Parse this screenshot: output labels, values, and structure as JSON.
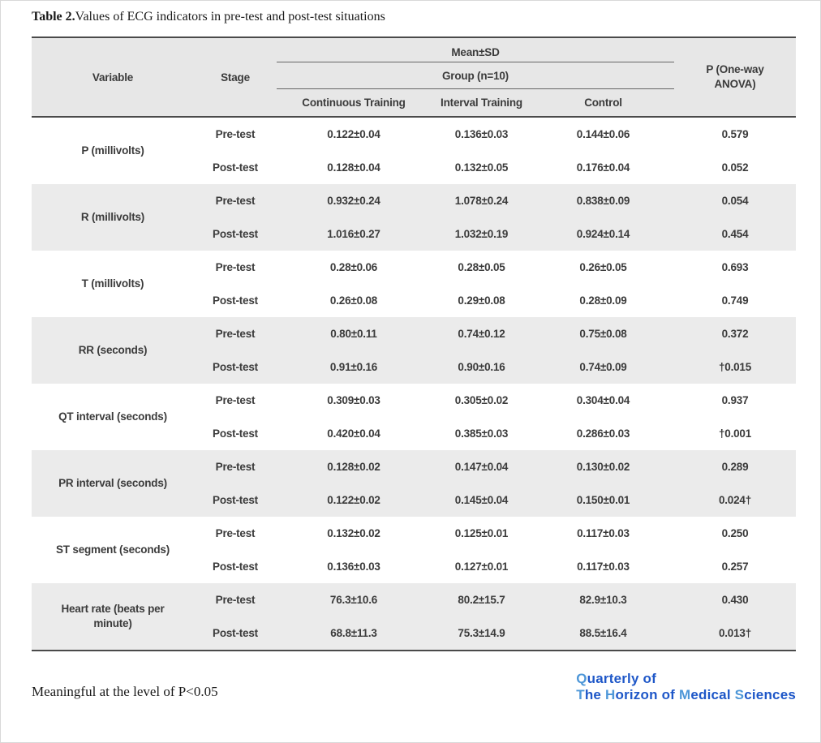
{
  "caption": {
    "label": "Table 2.",
    "text": "Values of ECG indicators in pre-test and post-test situations"
  },
  "colors": {
    "header_bg": "#e7e7e7",
    "stripe_bg": "#ebebeb",
    "rule_dark": "#4a4a4a",
    "rule_thin": "#666666",
    "text": "#3b3b3b",
    "logo_light": "#4e97d8",
    "logo_dark": "#1e57c8"
  },
  "table": {
    "header": {
      "variable": "Variable",
      "stage": "Stage",
      "mean_sd": "Mean±SD",
      "group": "Group (n=10)",
      "columns": [
        "Continuous Training",
        "Interval Training",
        "Control"
      ],
      "p_label": "P (One-way ANOVA)"
    },
    "blocks": [
      {
        "variable": "P (millivolts)",
        "rows": [
          {
            "stage": "Pre-test",
            "values": [
              "0.122±0.04",
              "0.136±0.03",
              "0.144±0.06"
            ],
            "p": "0.579"
          },
          {
            "stage": "Post-test",
            "values": [
              "0.128±0.04",
              "0.132±0.05",
              "0.176±0.04"
            ],
            "p": "0.052"
          }
        ]
      },
      {
        "variable": "R (millivolts)",
        "rows": [
          {
            "stage": "Pre-test",
            "values": [
              "0.932±0.24",
              "1.078±0.24",
              "0.838±0.09"
            ],
            "p": "0.054"
          },
          {
            "stage": "Post-test",
            "values": [
              "1.016±0.27",
              "1.032±0.19",
              "0.924±0.14"
            ],
            "p": "0.454"
          }
        ]
      },
      {
        "variable": "T (millivolts)",
        "rows": [
          {
            "stage": "Pre-test",
            "values": [
              "0.28±0.06",
              "0.28±0.05",
              "0.26±0.05"
            ],
            "p": "0.693"
          },
          {
            "stage": "Post-test",
            "values": [
              "0.26±0.08",
              "0.29±0.08",
              "0.28±0.09"
            ],
            "p": "0.749"
          }
        ]
      },
      {
        "variable": "RR (seconds)",
        "rows": [
          {
            "stage": "Pre-test",
            "values": [
              "0.80±0.11",
              "0.74±0.12",
              "0.75±0.08"
            ],
            "p": "0.372"
          },
          {
            "stage": "Post-test",
            "values": [
              "0.91±0.16",
              "0.90±0.16",
              "0.74±0.09"
            ],
            "p": "†0.015"
          }
        ]
      },
      {
        "variable": "QT interval (seconds)",
        "rows": [
          {
            "stage": "Pre-test",
            "values": [
              "0.309±0.03",
              "0.305±0.02",
              "0.304±0.04"
            ],
            "p": "0.937"
          },
          {
            "stage": "Post-test",
            "values": [
              "0.420±0.04",
              "0.385±0.03",
              "0.286±0.03"
            ],
            "p": "†0.001"
          }
        ]
      },
      {
        "variable": "PR interval (seconds)",
        "rows": [
          {
            "stage": "Pre-test",
            "values": [
              "0.128±0.02",
              "0.147±0.04",
              "0.130±0.02"
            ],
            "p": "0.289"
          },
          {
            "stage": "Post-test",
            "values": [
              "0.122±0.02",
              "0.145±0.04",
              "0.150±0.01"
            ],
            "p": "0.024†"
          }
        ]
      },
      {
        "variable": "ST segment (seconds)",
        "rows": [
          {
            "stage": "Pre-test",
            "values": [
              "0.132±0.02",
              "0.125±0.01",
              "0.117±0.03"
            ],
            "p": "0.250"
          },
          {
            "stage": "Post-test",
            "values": [
              "0.136±0.03",
              "0.127±0.01",
              "0.117±0.03"
            ],
            "p": "0.257"
          }
        ]
      },
      {
        "variable": "Heart rate (beats per minute)",
        "rows": [
          {
            "stage": "Pre-test",
            "values": [
              "76.3±10.6",
              "80.2±15.7",
              "82.9±10.3"
            ],
            "p": "0.430"
          },
          {
            "stage": "Post-test",
            "values": [
              "68.8±11.3",
              "75.3±14.9",
              "88.5±16.4"
            ],
            "p": "0.013†"
          }
        ]
      }
    ]
  },
  "footnote": "Meaningful at the level of P<0.05",
  "logo": {
    "line1": [
      {
        "t": "Q",
        "c": "light"
      },
      {
        "t": "uarterly of",
        "c": "dark"
      }
    ],
    "line2": [
      {
        "t": "T",
        "c": "light"
      },
      {
        "t": "he ",
        "c": "dark"
      },
      {
        "t": "H",
        "c": "light"
      },
      {
        "t": "orizon of ",
        "c": "dark"
      },
      {
        "t": "M",
        "c": "light"
      },
      {
        "t": "edical ",
        "c": "dark"
      },
      {
        "t": "S",
        "c": "light"
      },
      {
        "t": "ciences",
        "c": "dark"
      }
    ]
  }
}
